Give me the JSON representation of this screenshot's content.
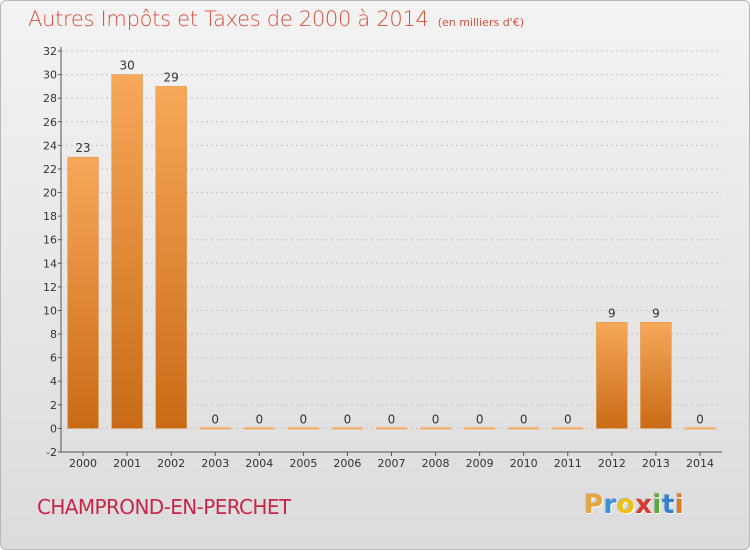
{
  "header": {
    "title": "Autres Impôts et Taxes de 2000 à 2014",
    "subtitle": "(en milliers d'€)"
  },
  "footer": {
    "commune": "CHAMPROND-EN-PERCHET",
    "logo_letters": [
      "P",
      "r",
      "o",
      "x",
      "i",
      "t",
      "i"
    ],
    "logo_colors": [
      "#e8a33a",
      "#3b8fd6",
      "#f0c20f",
      "#d93a2e",
      "#5aab3d",
      "#2f83cc",
      "#e07a20"
    ]
  },
  "colors": {
    "bar_light": "#f7a85a",
    "bar_dark": "#c96b16",
    "grid": "#c4c4c4",
    "axis": "#555555",
    "text": "#333333"
  },
  "chart_data": {
    "type": "bar",
    "categories": [
      "2000",
      "2001",
      "2002",
      "2003",
      "2004",
      "2005",
      "2006",
      "2007",
      "2008",
      "2009",
      "2010",
      "2011",
      "2012",
      "2013",
      "2014"
    ],
    "values": [
      23,
      30,
      29,
      0,
      0,
      0,
      0,
      0,
      0,
      0,
      0,
      0,
      9,
      9,
      0
    ],
    "data_labels": [
      "23",
      "30",
      "29",
      "0",
      "0",
      "0",
      "0",
      "0",
      "0",
      "0",
      "0",
      "0",
      "9",
      "9",
      "0"
    ],
    "yticks": [
      "-2",
      "0",
      "2",
      "4",
      "6",
      "8",
      "10",
      "12",
      "14",
      "16",
      "18",
      "20",
      "22",
      "24",
      "26",
      "28",
      "30",
      "32"
    ],
    "ylim": [
      -2,
      32
    ],
    "grid": true,
    "title": "Autres Impôts et Taxes de 2000 à 2014",
    "xlabel": "",
    "ylabel": ""
  }
}
